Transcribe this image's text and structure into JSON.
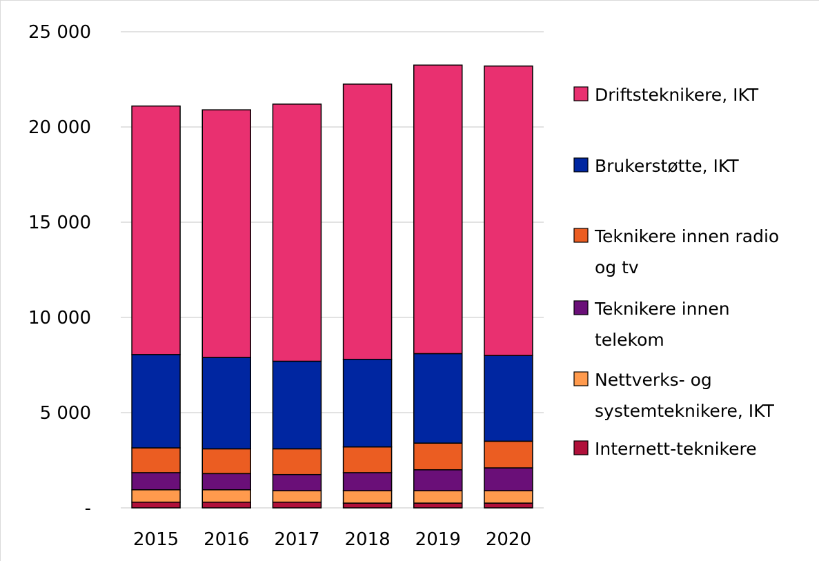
{
  "chart_data": {
    "type": "bar",
    "stacked": true,
    "categories": [
      "2015",
      "2016",
      "2017",
      "2018",
      "2019",
      "2020"
    ],
    "ylim": [
      0,
      25000
    ],
    "yticks": [
      0,
      5000,
      10000,
      15000,
      20000,
      25000
    ],
    "ytick_labels": [
      "-",
      "5 000",
      "10 000",
      "15 000",
      "20 000",
      "25 000"
    ],
    "grid": true,
    "legend_position": "right",
    "series": [
      {
        "name": "Internett-teknikere",
        "color": "#b0103a",
        "values": [
          300,
          300,
          300,
          250,
          250,
          250
        ]
      },
      {
        "name": "Nettverks- og systemteknikere, IKT",
        "color": "#ff9a4d",
        "values": [
          650,
          650,
          600,
          650,
          650,
          650
        ]
      },
      {
        "name": "Teknikere innen telekom",
        "color": "#6a0f78",
        "values": [
          900,
          850,
          850,
          950,
          1100,
          1200
        ]
      },
      {
        "name": "Teknikere innen radio og tv",
        "color": "#eb5d22",
        "values": [
          1300,
          1300,
          1350,
          1350,
          1400,
          1400
        ]
      },
      {
        "name": "Brukerstøtte, IKT",
        "color": "#0026a1",
        "values": [
          4900,
          4800,
          4600,
          4600,
          4700,
          4500
        ]
      },
      {
        "name": "Driftsteknikere, IKT",
        "color": "#e93070",
        "values": [
          13050,
          13000,
          13500,
          14450,
          15150,
          15200
        ]
      }
    ]
  }
}
